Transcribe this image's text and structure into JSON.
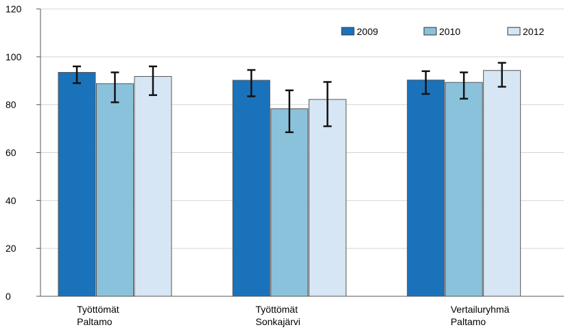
{
  "chart_data": {
    "type": "bar",
    "categories": [
      [
        "Työttömät",
        "Paltamo"
      ],
      [
        "Työttömät",
        "Sonkajärvi"
      ],
      [
        "Vertailuryhmä",
        "Paltamo"
      ]
    ],
    "series": [
      {
        "name": "2009",
        "color": "#1a72bb",
        "values": [
          93.5,
          90.2,
          90.3
        ],
        "error": [
          [
            89,
            96
          ],
          [
            83.5,
            94.5
          ],
          [
            84.5,
            94
          ]
        ]
      },
      {
        "name": "2010",
        "color": "#8ac2dc",
        "values": [
          88.8,
          78.3,
          89.3
        ],
        "error": [
          [
            81,
            93.5
          ],
          [
            68.5,
            86
          ],
          [
            82.5,
            93.5
          ]
        ]
      },
      {
        "name": "2012",
        "color": "#d6e6f4",
        "values": [
          91.8,
          82.2,
          94.3
        ],
        "error": [
          [
            84,
            96
          ],
          [
            71,
            89.5
          ],
          [
            87.5,
            97.5
          ]
        ]
      }
    ],
    "yticks": [
      0,
      20,
      40,
      60,
      80,
      100,
      120
    ],
    "ylim": [
      0,
      120
    ],
    "grid": true,
    "legend": "top-right"
  }
}
